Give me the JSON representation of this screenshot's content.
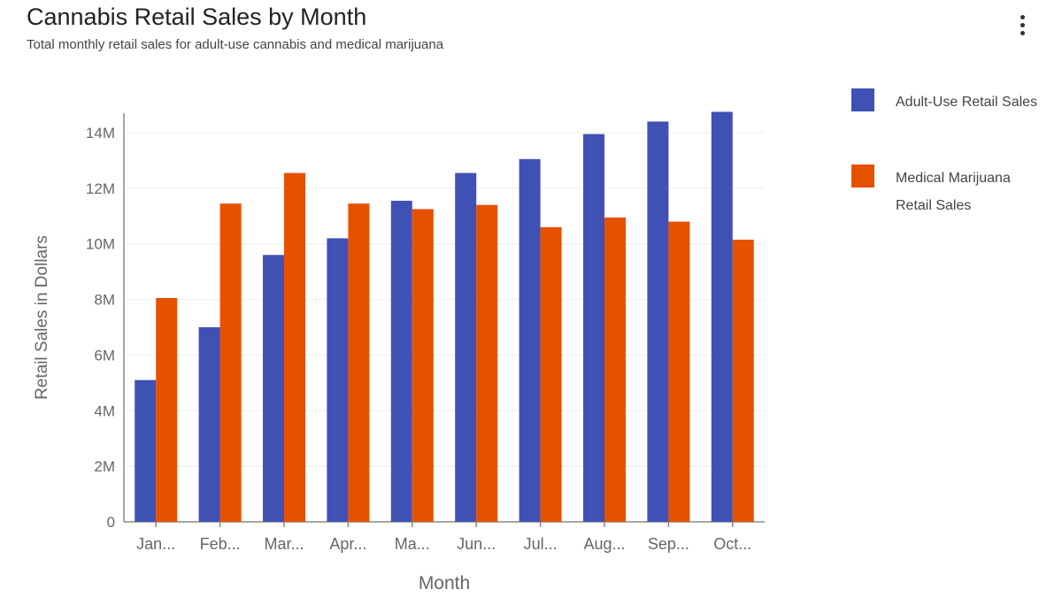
{
  "header": {
    "title": "Cannabis Retail Sales by Month",
    "subtitle": "Total monthly retail sales for adult-use cannabis and medical marijuana",
    "menu_icon": "more-vert-icon"
  },
  "colors": {
    "adult_use": "#3F51B5",
    "medical": "#E65100",
    "grid": "#eeeeee",
    "axis": "#888888",
    "tick_text": "#666666"
  },
  "chart_data": {
    "type": "bar",
    "title": "Cannabis Retail Sales by Month",
    "subtitle": "Total monthly retail sales for adult-use cannabis and medical marijuana",
    "xlabel": "Month",
    "ylabel": "Retail Sales in Dollars",
    "categories": [
      "Jan...",
      "Feb...",
      "Mar...",
      "Apr...",
      "Ma...",
      "Jun...",
      "Jul...",
      "Aug...",
      "Sep...",
      "Oct..."
    ],
    "series": [
      {
        "name": "Adult-Use Retail Sales",
        "color": "#3F51B5",
        "values": [
          5100000,
          7000000,
          9600000,
          10200000,
          11550000,
          12550000,
          13050000,
          13950000,
          14400000,
          14750000
        ]
      },
      {
        "name": "Medical Marijuana Retail Sales",
        "color": "#E65100",
        "values": [
          8050000,
          11450000,
          12550000,
          11450000,
          11250000,
          11400000,
          10600000,
          10950000,
          10800000,
          10150000
        ]
      }
    ],
    "ylim": [
      0,
      14700000
    ],
    "yticks": [
      0,
      2000000,
      4000000,
      6000000,
      8000000,
      10000000,
      12000000,
      14000000
    ],
    "ytick_labels": [
      "0",
      "2M",
      "4M",
      "6M",
      "8M",
      "10M",
      "12M",
      "14M"
    ],
    "grid": true,
    "legend_position": "right"
  }
}
